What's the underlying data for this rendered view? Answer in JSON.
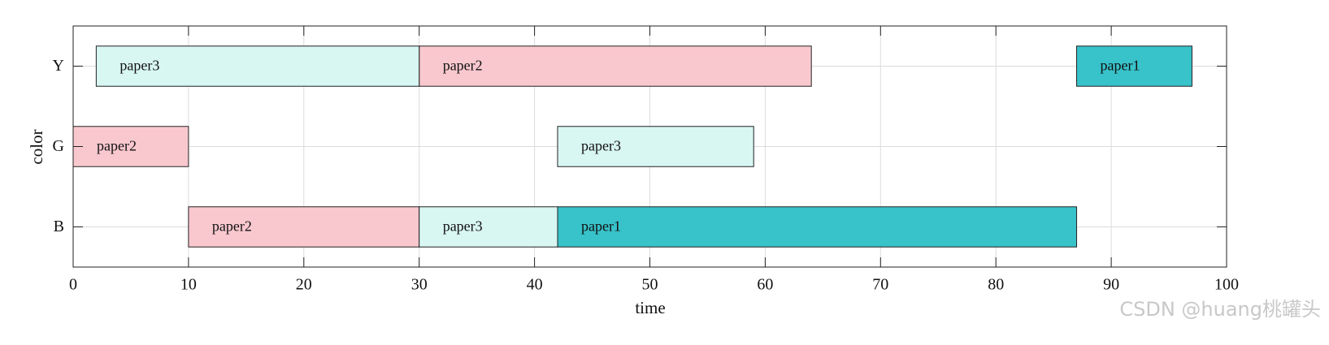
{
  "chart_data": {
    "type": "gantt",
    "xlabel": "time",
    "ylabel": "color",
    "categories": [
      "Y",
      "G",
      "B"
    ],
    "xlim": [
      0,
      100
    ],
    "xticks": [
      0,
      10,
      20,
      30,
      40,
      50,
      60,
      70,
      80,
      90,
      100
    ],
    "grid": true,
    "series": [
      {
        "name": "paper1",
        "color": "#38c2c9",
        "tasks": [
          {
            "category": "Y",
            "start": 87,
            "end": 97
          },
          {
            "category": "B",
            "start": 42,
            "end": 87
          }
        ]
      },
      {
        "name": "paper2",
        "color": "#f9c8ce",
        "tasks": [
          {
            "category": "Y",
            "start": 30,
            "end": 64
          },
          {
            "category": "G",
            "start": 0,
            "end": 10
          },
          {
            "category": "B",
            "start": 10,
            "end": 30
          }
        ]
      },
      {
        "name": "paper3",
        "color": "#d8f6f2",
        "tasks": [
          {
            "category": "Y",
            "start": 2,
            "end": 30
          },
          {
            "category": "G",
            "start": 42,
            "end": 59
          },
          {
            "category": "B",
            "start": 30,
            "end": 42
          }
        ]
      }
    ]
  },
  "watermark": "CSDN @huang桃罐头"
}
